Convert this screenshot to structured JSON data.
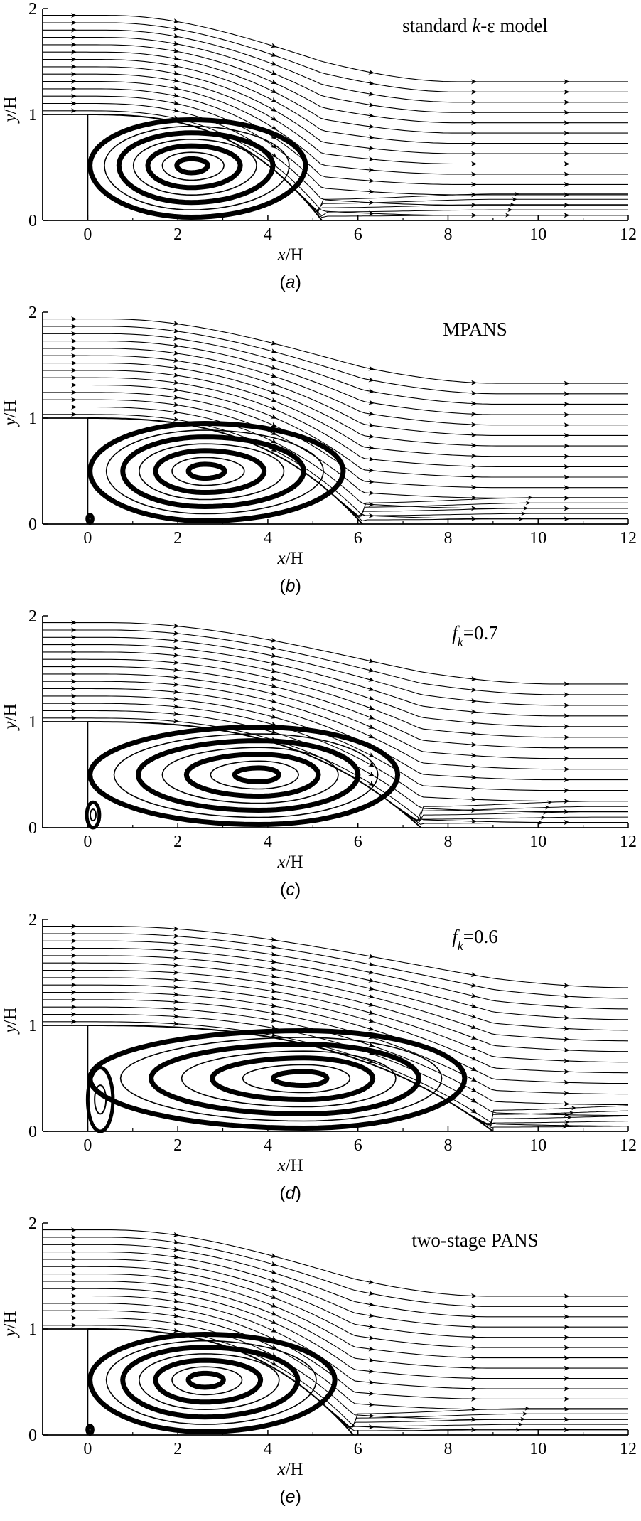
{
  "figure": {
    "panels_label": "Streamline plots of flow over backward-facing step",
    "colors": {
      "ink": "#000000",
      "background": "#ffffff"
    }
  },
  "chart_data": [
    {
      "type": "streamline",
      "panel_tag": "(a)",
      "tag_letter": "a",
      "title": "standard k-ε model",
      "title_parts": [
        {
          "text": "standard ",
          "italic": false
        },
        {
          "text": "k",
          "italic": true
        },
        {
          "text": "-ε model",
          "italic": false
        }
      ],
      "xlabel": "x/H",
      "ylabel": "y/H",
      "xlim": [
        -1,
        12
      ],
      "ylim": [
        0,
        2
      ],
      "xticks": [
        0,
        2,
        4,
        6,
        8,
        10,
        12
      ],
      "yticks": [
        0,
        1,
        2
      ],
      "step": {
        "x": 0,
        "height": 1
      },
      "vortex_center": {
        "x": 2.3,
        "y": 0.52
      },
      "reattachment_x": 5.2,
      "secondary_vortex": null,
      "outlet_top_y": 1.4
    },
    {
      "type": "streamline",
      "panel_tag": "(b)",
      "tag_letter": "b",
      "title": "MPANS",
      "title_parts": [
        {
          "text": "MPANS",
          "italic": false
        }
      ],
      "xlabel": "x/H",
      "ylabel": "y/H",
      "xlim": [
        -1,
        12
      ],
      "ylim": [
        0,
        2
      ],
      "xticks": [
        0,
        2,
        4,
        6,
        8,
        10,
        12
      ],
      "yticks": [
        0,
        1,
        2
      ],
      "step": {
        "x": 0,
        "height": 1
      },
      "vortex_center": {
        "x": 2.6,
        "y": 0.5
      },
      "reattachment_x": 6.1,
      "secondary_vortex": {
        "x": 0.05,
        "y": 0.05,
        "rx": 0.06,
        "ry": 0.04
      },
      "outlet_top_y": 1.42
    },
    {
      "type": "streamline",
      "panel_tag": "(c)",
      "tag_letter": "c",
      "title": "fk=0.7",
      "title_parts": [
        {
          "text": "f",
          "italic": true
        },
        {
          "text": "k",
          "italic": true,
          "sub": true
        },
        {
          "text": "=0.7",
          "italic": false
        }
      ],
      "xlabel": "x/H",
      "ylabel": "y/H",
      "xlim": [
        -1,
        12
      ],
      "ylim": [
        0,
        2
      ],
      "xticks": [
        0,
        2,
        4,
        6,
        8,
        10,
        12
      ],
      "yticks": [
        0,
        1,
        2
      ],
      "step": {
        "x": 0,
        "height": 1
      },
      "vortex_center": {
        "x": 3.8,
        "y": 0.5
      },
      "reattachment_x": 7.4,
      "secondary_vortex": {
        "x": 0.12,
        "y": 0.12,
        "rx": 0.14,
        "ry": 0.12
      },
      "outlet_top_y": 1.45
    },
    {
      "type": "streamline",
      "panel_tag": "(d)",
      "tag_letter": "d",
      "title": "fk=0.6",
      "title_parts": [
        {
          "text": "f",
          "italic": true
        },
        {
          "text": "k",
          "italic": true,
          "sub": true
        },
        {
          "text": "=0.6",
          "italic": false
        }
      ],
      "xlabel": "x/H",
      "ylabel": "y/H",
      "xlim": [
        -1,
        12
      ],
      "ylim": [
        0,
        2
      ],
      "xticks": [
        0,
        2,
        4,
        6,
        8,
        10,
        12
      ],
      "yticks": [
        0,
        1,
        2
      ],
      "step": {
        "x": 0,
        "height": 1
      },
      "vortex_center": {
        "x": 4.8,
        "y": 0.5
      },
      "reattachment_x": 9.0,
      "secondary_vortex": {
        "x": 0.28,
        "y": 0.3,
        "rx": 0.28,
        "ry": 0.3
      },
      "outlet_top_y": 1.45
    },
    {
      "type": "streamline",
      "panel_tag": "(e)",
      "tag_letter": "e",
      "title": "two-stage PANS",
      "title_parts": [
        {
          "text": "two-stage PANS",
          "italic": false
        }
      ],
      "xlabel": "x/H",
      "ylabel": "y/H",
      "xlim": [
        -1,
        12
      ],
      "ylim": [
        0,
        2
      ],
      "xticks": [
        0,
        2,
        4,
        6,
        8,
        10,
        12
      ],
      "yticks": [
        0,
        1,
        2
      ],
      "step": {
        "x": 0,
        "height": 1
      },
      "vortex_center": {
        "x": 2.6,
        "y": 0.52
      },
      "reattachment_x": 5.9,
      "secondary_vortex": {
        "x": 0.05,
        "y": 0.05,
        "rx": 0.06,
        "ry": 0.04
      },
      "outlet_top_y": 1.4
    }
  ]
}
